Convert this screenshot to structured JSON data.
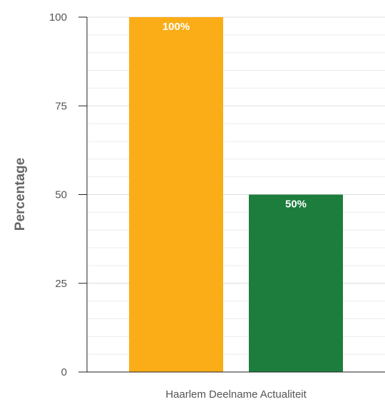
{
  "chart_data": {
    "type": "bar",
    "title": "",
    "xlabel": "Haarlem Deelname Actualiteit",
    "ylabel": "Percentage",
    "ylim": [
      0,
      100
    ],
    "yticks": [
      0,
      25,
      50,
      75,
      100
    ],
    "minor_grid_step": 5,
    "grid": true,
    "legend": "none",
    "bars": [
      {
        "value": 100,
        "label": "100%",
        "color": "#fbad18"
      },
      {
        "value": 50,
        "label": "50%",
        "color": "#1d7d3c"
      }
    ]
  }
}
